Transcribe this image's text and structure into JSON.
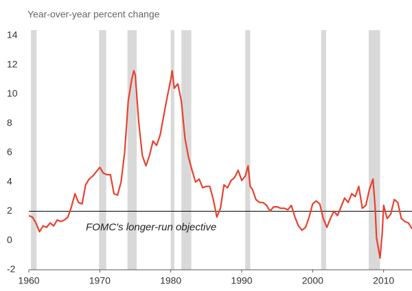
{
  "chart_data": {
    "type": "line",
    "ylabel": "Year-over-year percent change",
    "xlim": [
      1960,
      2014
    ],
    "xticks": [
      1960,
      1970,
      1980,
      1990,
      2000,
      2010
    ],
    "ylim": [
      -2,
      14
    ],
    "yticks": [
      -2,
      0,
      2,
      4,
      6,
      8,
      10,
      12,
      14
    ],
    "recession_color": "#d9d9d9",
    "recessions": [
      [
        1960.3,
        1961.1
      ],
      [
        1969.9,
        1970.9
      ],
      [
        1973.9,
        1975.2
      ],
      [
        1980.0,
        1980.5
      ],
      [
        1981.5,
        1982.9
      ],
      [
        1990.5,
        1991.2
      ],
      [
        2001.2,
        2001.9
      ],
      [
        2007.9,
        2009.5
      ]
    ],
    "reference_line": {
      "value": 2,
      "label": "FOMC's longer-run objective",
      "color": "#000000"
    },
    "x": [
      1960.0,
      1960.5,
      1961.0,
      1961.5,
      1962.0,
      1962.5,
      1963.0,
      1963.5,
      1964.0,
      1964.5,
      1965.0,
      1965.5,
      1966.0,
      1966.5,
      1967.0,
      1967.5,
      1968.0,
      1968.5,
      1969.0,
      1969.5,
      1970.0,
      1970.5,
      1971.0,
      1971.5,
      1972.0,
      1972.5,
      1973.0,
      1973.5,
      1974.0,
      1974.5,
      1974.8,
      1975.0,
      1975.5,
      1976.0,
      1976.5,
      1977.0,
      1977.5,
      1978.0,
      1978.5,
      1979.0,
      1979.5,
      1980.0,
      1980.2,
      1980.5,
      1981.0,
      1981.5,
      1982.0,
      1982.5,
      1983.0,
      1983.5,
      1984.0,
      1984.5,
      1985.0,
      1985.5,
      1986.0,
      1986.5,
      1987.0,
      1987.5,
      1988.0,
      1988.5,
      1989.0,
      1989.5,
      1990.0,
      1990.5,
      1990.9,
      1991.2,
      1991.5,
      1992.0,
      1992.5,
      1993.0,
      1993.5,
      1994.0,
      1994.5,
      1995.0,
      1995.5,
      1996.0,
      1996.5,
      1997.0,
      1997.5,
      1998.0,
      1998.5,
      1999.0,
      1999.5,
      2000.0,
      2000.5,
      2001.0,
      2001.5,
      2002.0,
      2002.5,
      2003.0,
      2003.5,
      2004.0,
      2004.5,
      2005.0,
      2005.5,
      2006.0,
      2006.5,
      2007.0,
      2007.5,
      2008.0,
      2008.5,
      2008.8,
      2009.0,
      2009.5,
      2009.8,
      2010.0,
      2010.5,
      2011.0,
      2011.5,
      2012.0,
      2012.5,
      2013.0,
      2013.5,
      2014.0
    ],
    "series": [
      {
        "color": "#e8412f",
        "values": [
          1.7,
          1.6,
          1.2,
          0.6,
          1.0,
          0.9,
          1.2,
          1.0,
          1.4,
          1.3,
          1.4,
          1.6,
          2.3,
          3.2,
          2.6,
          2.5,
          3.8,
          4.2,
          4.4,
          4.7,
          5.0,
          4.6,
          4.5,
          4.5,
          3.2,
          3.1,
          4.0,
          6.0,
          9.5,
          11.0,
          11.6,
          11.3,
          8.0,
          5.8,
          5.1,
          5.8,
          6.8,
          6.5,
          7.2,
          8.5,
          9.8,
          11.0,
          11.6,
          10.4,
          10.7,
          9.5,
          7.0,
          5.7,
          4.8,
          4.0,
          4.2,
          3.6,
          3.7,
          3.7,
          2.8,
          1.6,
          2.2,
          3.8,
          3.6,
          4.1,
          4.3,
          4.8,
          4.1,
          4.4,
          5.1,
          3.7,
          3.5,
          2.8,
          2.6,
          2.6,
          2.4,
          2.0,
          2.3,
          2.3,
          2.2,
          2.2,
          2.1,
          2.4,
          1.6,
          1.0,
          0.7,
          0.9,
          1.6,
          2.5,
          2.7,
          2.5,
          1.5,
          0.9,
          1.5,
          2.0,
          1.7,
          2.3,
          2.9,
          2.6,
          3.2,
          3.0,
          3.7,
          2.2,
          2.4,
          3.5,
          4.2,
          2.3,
          0.2,
          -1.2,
          0.5,
          2.4,
          1.5,
          1.8,
          2.8,
          2.6,
          1.5,
          1.3,
          1.2,
          0.8
        ]
      }
    ]
  }
}
